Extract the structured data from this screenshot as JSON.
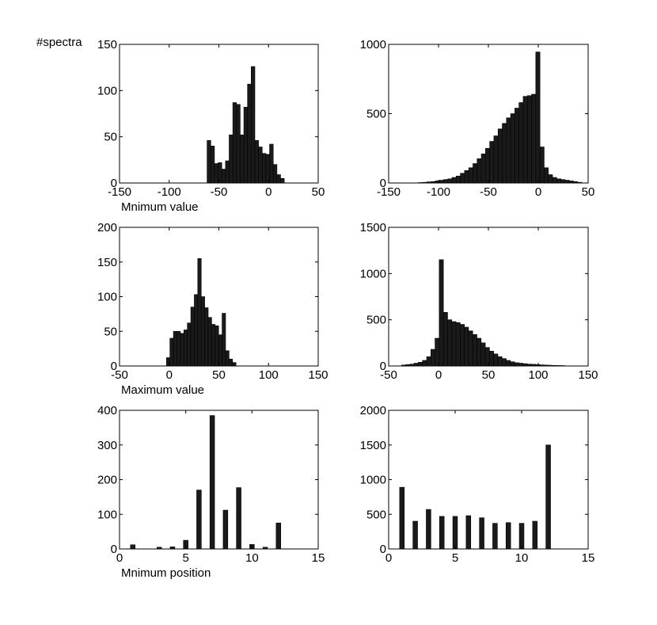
{
  "figure": {
    "y_axis_caption": "#spectra"
  },
  "colors": {
    "bar_fill": "#1a1a1a",
    "axes": "#000000",
    "background": "#ffffff"
  },
  "chart_data": [
    {
      "type": "bar",
      "panel": "row1-left",
      "xlabel": "Mnimum value",
      "ylabel": "#spectra",
      "xlim": [
        -150,
        50
      ],
      "ylim": [
        0,
        150
      ],
      "xticks": [
        -150,
        -100,
        -50,
        0,
        50
      ],
      "yticks": [
        0,
        50,
        100,
        150
      ],
      "bin_width": 3.7,
      "bins": [
        {
          "x": -60,
          "y": 46
        },
        {
          "x": -56.3,
          "y": 40
        },
        {
          "x": -52.6,
          "y": 21
        },
        {
          "x": -48.9,
          "y": 22
        },
        {
          "x": -45.2,
          "y": 15
        },
        {
          "x": -41.5,
          "y": 24
        },
        {
          "x": -37.8,
          "y": 52
        },
        {
          "x": -34.1,
          "y": 87
        },
        {
          "x": -30.4,
          "y": 85
        },
        {
          "x": -26.7,
          "y": 52
        },
        {
          "x": -23,
          "y": 82
        },
        {
          "x": -19.3,
          "y": 107
        },
        {
          "x": -15.6,
          "y": 126
        },
        {
          "x": -11.9,
          "y": 46
        },
        {
          "x": -8.2,
          "y": 39
        },
        {
          "x": -4.5,
          "y": 32
        },
        {
          "x": -0.8,
          "y": 31
        },
        {
          "x": 2.9,
          "y": 42
        },
        {
          "x": 6.6,
          "y": 20
        },
        {
          "x": 10.3,
          "y": 9
        },
        {
          "x": 14,
          "y": 5
        }
      ]
    },
    {
      "type": "bar",
      "panel": "row1-right",
      "xlabel": "",
      "ylabel": "",
      "xlim": [
        -150,
        50
      ],
      "ylim": [
        0,
        1000
      ],
      "xticks": [
        -150,
        -100,
        -50,
        0,
        50
      ],
      "yticks": [
        0,
        500,
        1000
      ],
      "bin_width": 4.2,
      "bins": [
        {
          "x": -118,
          "y": 3
        },
        {
          "x": -113.8,
          "y": 5
        },
        {
          "x": -109.6,
          "y": 8
        },
        {
          "x": -105.4,
          "y": 10
        },
        {
          "x": -101.2,
          "y": 15
        },
        {
          "x": -97,
          "y": 20
        },
        {
          "x": -92.8,
          "y": 25
        },
        {
          "x": -88.6,
          "y": 30
        },
        {
          "x": -84.4,
          "y": 40
        },
        {
          "x": -80.2,
          "y": 50
        },
        {
          "x": -76,
          "y": 70
        },
        {
          "x": -71.8,
          "y": 90
        },
        {
          "x": -67.6,
          "y": 110
        },
        {
          "x": -63.4,
          "y": 140
        },
        {
          "x": -59.2,
          "y": 175
        },
        {
          "x": -55,
          "y": 210
        },
        {
          "x": -50.8,
          "y": 250
        },
        {
          "x": -46.6,
          "y": 300
        },
        {
          "x": -42.4,
          "y": 340
        },
        {
          "x": -38.2,
          "y": 390
        },
        {
          "x": -34,
          "y": 430
        },
        {
          "x": -29.8,
          "y": 470
        },
        {
          "x": -25.6,
          "y": 500
        },
        {
          "x": -21.4,
          "y": 540
        },
        {
          "x": -17.2,
          "y": 580
        },
        {
          "x": -13,
          "y": 625
        },
        {
          "x": -8.8,
          "y": 630
        },
        {
          "x": -4.6,
          "y": 640
        },
        {
          "x": -0.4,
          "y": 945
        },
        {
          "x": 3.8,
          "y": 260
        },
        {
          "x": 8,
          "y": 110
        },
        {
          "x": 12.2,
          "y": 60
        },
        {
          "x": 16.4,
          "y": 40
        },
        {
          "x": 20.6,
          "y": 30
        },
        {
          "x": 24.8,
          "y": 25
        },
        {
          "x": 29,
          "y": 20
        },
        {
          "x": 33.2,
          "y": 15
        },
        {
          "x": 37.4,
          "y": 10
        },
        {
          "x": 41.6,
          "y": 5
        }
      ]
    },
    {
      "type": "bar",
      "panel": "row2-left",
      "xlabel": "Maximum value",
      "ylabel": "",
      "xlim": [
        -50,
        150
      ],
      "ylim": [
        0,
        200
      ],
      "xticks": [
        -50,
        0,
        50,
        100,
        150
      ],
      "yticks": [
        0,
        50,
        100,
        150,
        200
      ],
      "bin_width": 3.5,
      "bins": [
        {
          "x": -1,
          "y": 12
        },
        {
          "x": 2.5,
          "y": 40
        },
        {
          "x": 6,
          "y": 50
        },
        {
          "x": 9.5,
          "y": 50
        },
        {
          "x": 13,
          "y": 47
        },
        {
          "x": 16.5,
          "y": 52
        },
        {
          "x": 20,
          "y": 62
        },
        {
          "x": 23.5,
          "y": 85
        },
        {
          "x": 27,
          "y": 103
        },
        {
          "x": 30.5,
          "y": 155
        },
        {
          "x": 34,
          "y": 100
        },
        {
          "x": 37.5,
          "y": 84
        },
        {
          "x": 41,
          "y": 70
        },
        {
          "x": 44.5,
          "y": 60
        },
        {
          "x": 48,
          "y": 58
        },
        {
          "x": 51.5,
          "y": 45
        },
        {
          "x": 55,
          "y": 76
        },
        {
          "x": 58.5,
          "y": 22
        },
        {
          "x": 62,
          "y": 10
        },
        {
          "x": 65.5,
          "y": 5
        }
      ]
    },
    {
      "type": "bar",
      "panel": "row2-right",
      "xlabel": "",
      "ylabel": "",
      "xlim": [
        -50,
        150
      ],
      "ylim": [
        0,
        1500
      ],
      "xticks": [
        -50,
        0,
        50,
        100,
        150
      ],
      "yticks": [
        0,
        500,
        1000,
        1500
      ],
      "bin_width": 4.2,
      "bins": [
        {
          "x": -35,
          "y": 10
        },
        {
          "x": -30.8,
          "y": 15
        },
        {
          "x": -26.6,
          "y": 20
        },
        {
          "x": -22.4,
          "y": 30
        },
        {
          "x": -18.2,
          "y": 40
        },
        {
          "x": -14,
          "y": 60
        },
        {
          "x": -9.8,
          "y": 100
        },
        {
          "x": -5.6,
          "y": 180
        },
        {
          "x": -1.4,
          "y": 300
        },
        {
          "x": 2.8,
          "y": 1150
        },
        {
          "x": 7,
          "y": 580
        },
        {
          "x": 11.2,
          "y": 500
        },
        {
          "x": 15.4,
          "y": 480
        },
        {
          "x": 19.6,
          "y": 470
        },
        {
          "x": 23.8,
          "y": 450
        },
        {
          "x": 28,
          "y": 420
        },
        {
          "x": 32.2,
          "y": 380
        },
        {
          "x": 36.4,
          "y": 340
        },
        {
          "x": 40.6,
          "y": 300
        },
        {
          "x": 44.8,
          "y": 250
        },
        {
          "x": 49,
          "y": 200
        },
        {
          "x": 53.2,
          "y": 160
        },
        {
          "x": 57.4,
          "y": 130
        },
        {
          "x": 61.6,
          "y": 100
        },
        {
          "x": 65.8,
          "y": 80
        },
        {
          "x": 70,
          "y": 60
        },
        {
          "x": 74.2,
          "y": 45
        },
        {
          "x": 78.4,
          "y": 35
        },
        {
          "x": 82.6,
          "y": 30
        },
        {
          "x": 86.8,
          "y": 25
        },
        {
          "x": 91,
          "y": 20
        },
        {
          "x": 95.2,
          "y": 18
        },
        {
          "x": 99.4,
          "y": 15
        },
        {
          "x": 103.6,
          "y": 12
        },
        {
          "x": 107.8,
          "y": 10
        },
        {
          "x": 112,
          "y": 8
        },
        {
          "x": 116.2,
          "y": 6
        },
        {
          "x": 120.4,
          "y": 5
        },
        {
          "x": 124.6,
          "y": 4
        }
      ]
    },
    {
      "type": "bar",
      "panel": "row3-left",
      "xlabel": "Mnimum position",
      "ylabel": "",
      "xlim": [
        0,
        15
      ],
      "ylim": [
        0,
        400
      ],
      "xticks": [
        0,
        5,
        10,
        15
      ],
      "yticks": [
        0,
        100,
        200,
        300,
        400
      ],
      "bin_width": 0.35,
      "bins": [
        {
          "x": 1,
          "y": 12
        },
        {
          "x": 3,
          "y": 5
        },
        {
          "x": 4,
          "y": 6
        },
        {
          "x": 5,
          "y": 25
        },
        {
          "x": 6,
          "y": 170
        },
        {
          "x": 7,
          "y": 385
        },
        {
          "x": 8,
          "y": 112
        },
        {
          "x": 9,
          "y": 177
        },
        {
          "x": 10,
          "y": 13
        },
        {
          "x": 11,
          "y": 5
        },
        {
          "x": 12,
          "y": 75
        }
      ]
    },
    {
      "type": "bar",
      "panel": "row3-right",
      "xlabel": "",
      "ylabel": "",
      "xlim": [
        0,
        15
      ],
      "ylim": [
        0,
        2000
      ],
      "xticks": [
        0,
        5,
        10,
        15
      ],
      "yticks": [
        0,
        500,
        1000,
        1500,
        2000
      ],
      "bin_width": 0.35,
      "bins": [
        {
          "x": 1,
          "y": 890
        },
        {
          "x": 2,
          "y": 400
        },
        {
          "x": 3,
          "y": 570
        },
        {
          "x": 4,
          "y": 470
        },
        {
          "x": 5,
          "y": 470
        },
        {
          "x": 6,
          "y": 480
        },
        {
          "x": 7,
          "y": 450
        },
        {
          "x": 8,
          "y": 370
        },
        {
          "x": 9,
          "y": 380
        },
        {
          "x": 10,
          "y": 370
        },
        {
          "x": 11,
          "y": 400
        },
        {
          "x": 12,
          "y": 1500
        }
      ]
    }
  ]
}
